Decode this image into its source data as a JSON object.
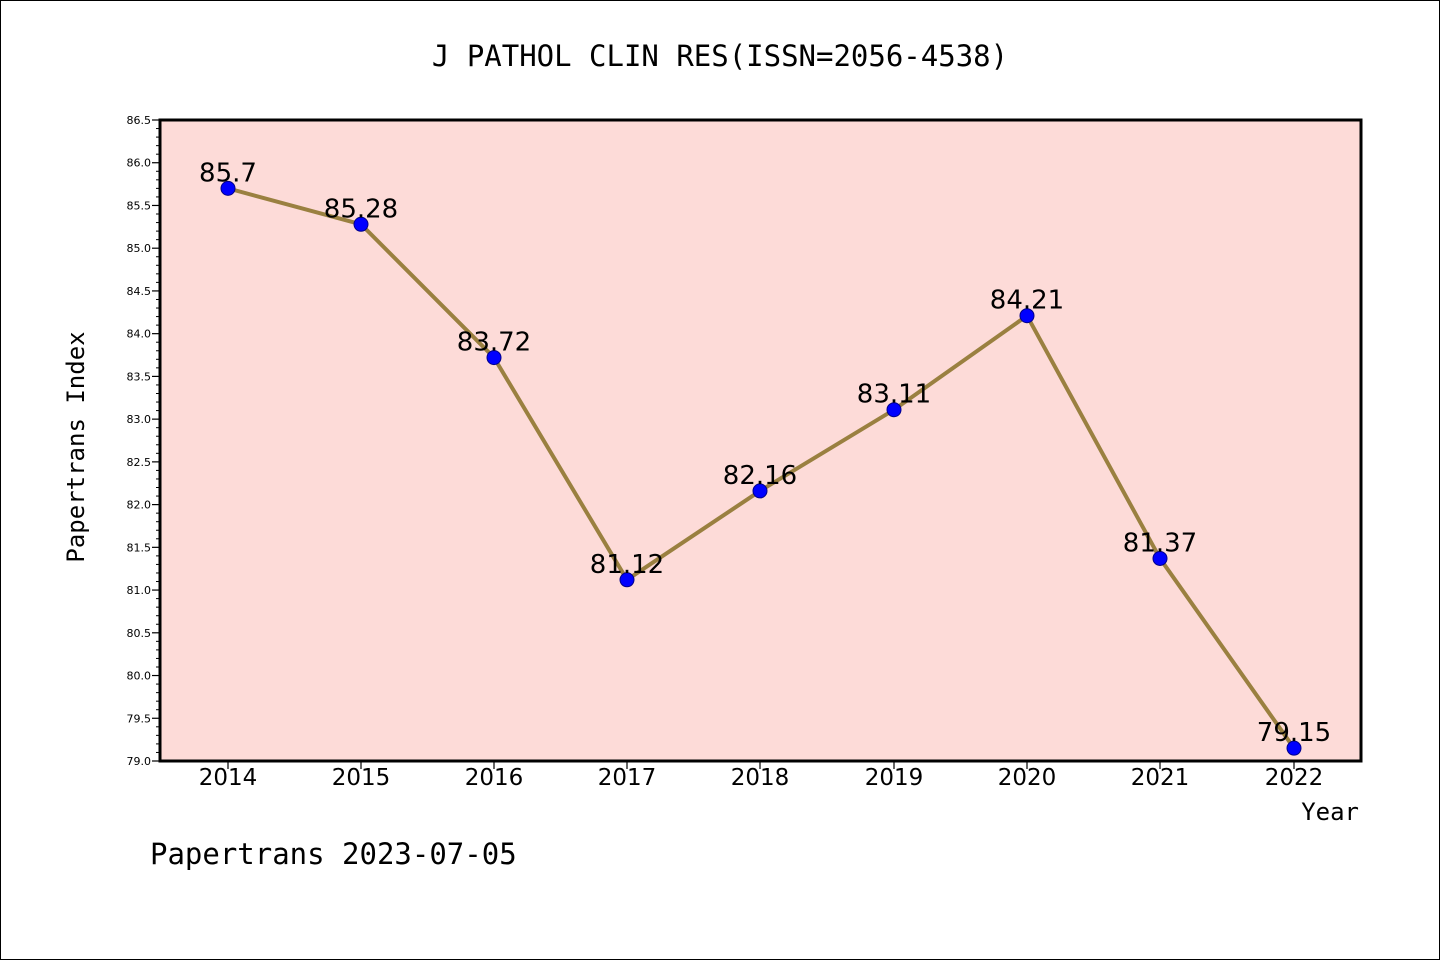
{
  "chart_data": {
    "type": "line",
    "title": "J PATHOL CLIN RES(ISSN=2056-4538)",
    "xlabel": "Year",
    "ylabel": "Papertrans Index",
    "x": [
      "2014",
      "2015",
      "2016",
      "2017",
      "2018",
      "2019",
      "2020",
      "2021",
      "2022"
    ],
    "series": [
      {
        "values": [
          85.7,
          85.28,
          83.72,
          81.12,
          82.16,
          83.11,
          84.21,
          81.37,
          79.15
        ],
        "labels": [
          "85.7",
          "85.28",
          "83.72",
          "81.12",
          "82.16",
          "83.11",
          "84.21",
          "81.37",
          "79.15"
        ]
      }
    ],
    "ylim": [
      79.0,
      86.5
    ],
    "yticks": [
      "79.0",
      "79.5",
      "80.0",
      "80.5",
      "81.0",
      "81.5",
      "82.0",
      "82.5",
      "83.0",
      "83.5",
      "84.0",
      "84.5",
      "85.0",
      "85.5",
      "86.0",
      "86.5"
    ],
    "grid": false,
    "legend": "none",
    "colors": {
      "plot_background": "#fddbd8",
      "line": "#9a8040",
      "marker": "#0000ff"
    }
  },
  "footer": {
    "watermark": "Papertrans 2023-07-05"
  }
}
